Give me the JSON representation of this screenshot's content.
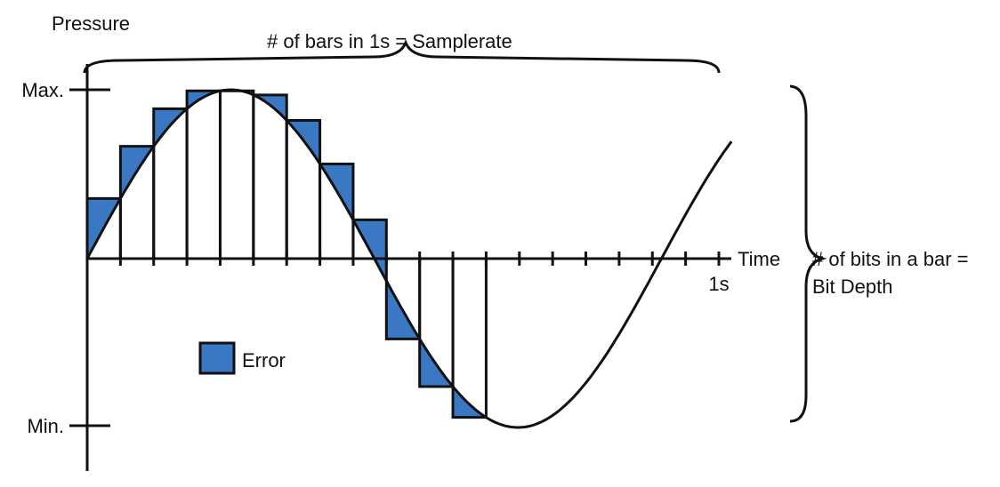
{
  "labels": {
    "y_axis": "Pressure",
    "x_axis": "Time",
    "max": "Max.",
    "min": "Min.",
    "one_second": "1s",
    "samplerate": "# of bars in 1s = Samplerate",
    "bit_depth_line1": "# of bits in a bar =",
    "bit_depth_line2": "Bit Depth",
    "legend_error": "Error"
  },
  "colors": {
    "error_fill": "#3a78c3",
    "stroke": "#111111",
    "background": "#ffffff"
  },
  "sampling": {
    "samples_per_second": 19,
    "bars_drawn": 12,
    "wave_cycles_per_second": 1.1
  }
}
